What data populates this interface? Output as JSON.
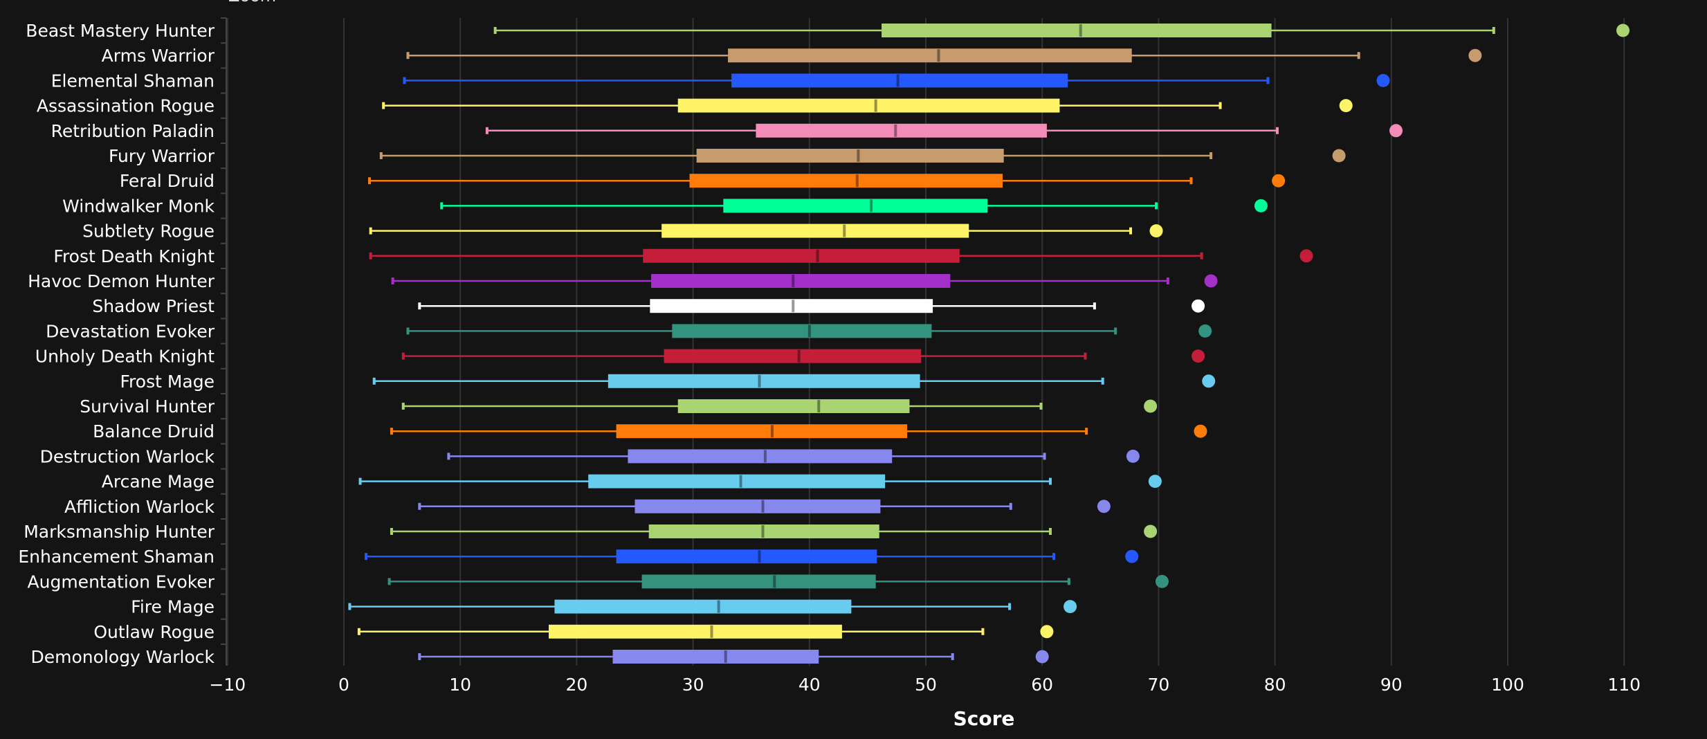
{
  "zoom_label": "Zoom",
  "chart_data": {
    "type": "boxplot",
    "orientation": "horizontal",
    "xlabel": "Score",
    "xlim": [
      -10,
      115
    ],
    "xticks": [
      -10,
      0,
      10,
      20,
      30,
      40,
      50,
      60,
      70,
      80,
      90,
      100,
      110
    ],
    "grid": true,
    "background": "#141414",
    "categories": [
      {
        "name": "Beast Mastery Hunter",
        "color": "#aad372",
        "min": 13.0,
        "q1": 46.2,
        "median": 63.3,
        "q3": 79.7,
        "max": 98.8,
        "outlier": 109.9
      },
      {
        "name": "Arms Warrior",
        "color": "#c69b6d",
        "min": 5.5,
        "q1": 33.0,
        "median": 51.1,
        "q3": 67.7,
        "max": 87.2,
        "outlier": 97.2
      },
      {
        "name": "Elemental Shaman",
        "color": "#2459ff",
        "min": 5.2,
        "q1": 33.3,
        "median": 47.6,
        "q3": 62.2,
        "max": 79.4,
        "outlier": 89.3
      },
      {
        "name": "Assassination Rogue",
        "color": "#fff468",
        "min": 3.4,
        "q1": 28.7,
        "median": 45.7,
        "q3": 61.5,
        "max": 75.3,
        "outlier": 86.1
      },
      {
        "name": "Retribution Paladin",
        "color": "#f48cba",
        "min": 12.3,
        "q1": 35.4,
        "median": 47.4,
        "q3": 60.4,
        "max": 80.2,
        "outlier": 90.4
      },
      {
        "name": "Fury Warrior",
        "color": "#c69b6d",
        "min": 3.2,
        "q1": 30.3,
        "median": 44.2,
        "q3": 56.7,
        "max": 74.5,
        "outlier": 85.5
      },
      {
        "name": "Feral Druid",
        "color": "#ff7c0a",
        "min": 2.2,
        "q1": 29.7,
        "median": 44.1,
        "q3": 56.6,
        "max": 72.8,
        "outlier": 80.3
      },
      {
        "name": "Windwalker Monk",
        "color": "#00ff98",
        "min": 8.4,
        "q1": 32.6,
        "median": 45.3,
        "q3": 55.3,
        "max": 69.8,
        "outlier": 78.8
      },
      {
        "name": "Subtlety Rogue",
        "color": "#fff468",
        "min": 2.3,
        "q1": 27.3,
        "median": 43.0,
        "q3": 53.7,
        "max": 67.6,
        "outlier": 69.8
      },
      {
        "name": "Frost Death Knight",
        "color": "#c41e3a",
        "min": 2.3,
        "q1": 25.7,
        "median": 40.7,
        "q3": 52.9,
        "max": 73.7,
        "outlier": 82.7
      },
      {
        "name": "Havoc Demon Hunter",
        "color": "#a330c9",
        "min": 4.2,
        "q1": 26.4,
        "median": 38.6,
        "q3": 52.1,
        "max": 70.8,
        "outlier": 74.5
      },
      {
        "name": "Shadow Priest",
        "color": "#ffffff",
        "min": 6.5,
        "q1": 26.3,
        "median": 38.6,
        "q3": 50.6,
        "max": 64.5,
        "outlier": 73.4
      },
      {
        "name": "Devastation Evoker",
        "color": "#33937f",
        "min": 5.5,
        "q1": 28.2,
        "median": 40.0,
        "q3": 50.5,
        "max": 66.3,
        "outlier": 74.0
      },
      {
        "name": "Unholy Death Knight",
        "color": "#c41e3a",
        "min": 5.1,
        "q1": 27.5,
        "median": 39.1,
        "q3": 49.6,
        "max": 63.7,
        "outlier": 73.4
      },
      {
        "name": "Frost Mage",
        "color": "#68ccef",
        "min": 2.6,
        "q1": 22.7,
        "median": 35.7,
        "q3": 49.5,
        "max": 65.2,
        "outlier": 74.3
      },
      {
        "name": "Survival Hunter",
        "color": "#aad372",
        "min": 5.1,
        "q1": 28.7,
        "median": 40.8,
        "q3": 48.6,
        "max": 59.9,
        "outlier": 69.3
      },
      {
        "name": "Balance Druid",
        "color": "#ff7c0a",
        "min": 4.1,
        "q1": 23.4,
        "median": 36.8,
        "q3": 48.4,
        "max": 63.8,
        "outlier": 73.6
      },
      {
        "name": "Destruction Warlock",
        "color": "#8788ee",
        "min": 9.0,
        "q1": 24.4,
        "median": 36.2,
        "q3": 47.1,
        "max": 60.2,
        "outlier": 67.8
      },
      {
        "name": "Arcane Mage",
        "color": "#68ccef",
        "min": 1.4,
        "q1": 21.0,
        "median": 34.1,
        "q3": 46.5,
        "max": 60.7,
        "outlier": 69.7
      },
      {
        "name": "Affliction Warlock",
        "color": "#8788ee",
        "min": 6.5,
        "q1": 25.0,
        "median": 36.0,
        "q3": 46.1,
        "max": 57.3,
        "outlier": 65.3
      },
      {
        "name": "Marksmanship Hunter",
        "color": "#aad372",
        "min": 4.1,
        "q1": 26.2,
        "median": 36.0,
        "q3": 46.0,
        "max": 60.7,
        "outlier": 69.3
      },
      {
        "name": "Enhancement Shaman",
        "color": "#2459ff",
        "min": 1.9,
        "q1": 23.4,
        "median": 35.7,
        "q3": 45.8,
        "max": 61.0,
        "outlier": 67.7
      },
      {
        "name": "Augmentation Evoker",
        "color": "#33937f",
        "min": 3.9,
        "q1": 25.6,
        "median": 37.0,
        "q3": 45.7,
        "max": 62.3,
        "outlier": 70.3
      },
      {
        "name": "Fire Mage",
        "color": "#68ccef",
        "min": 0.5,
        "q1": 18.1,
        "median": 32.2,
        "q3": 43.6,
        "max": 57.2,
        "outlier": 62.4
      },
      {
        "name": "Outlaw Rogue",
        "color": "#fff468",
        "min": 1.3,
        "q1": 17.6,
        "median": 31.6,
        "q3": 42.8,
        "max": 54.9,
        "outlier": 60.4
      },
      {
        "name": "Demonology Warlock",
        "color": "#8788ee",
        "min": 6.5,
        "q1": 23.1,
        "median": 32.8,
        "q3": 40.8,
        "max": 52.3,
        "outlier": 60.0
      }
    ]
  }
}
